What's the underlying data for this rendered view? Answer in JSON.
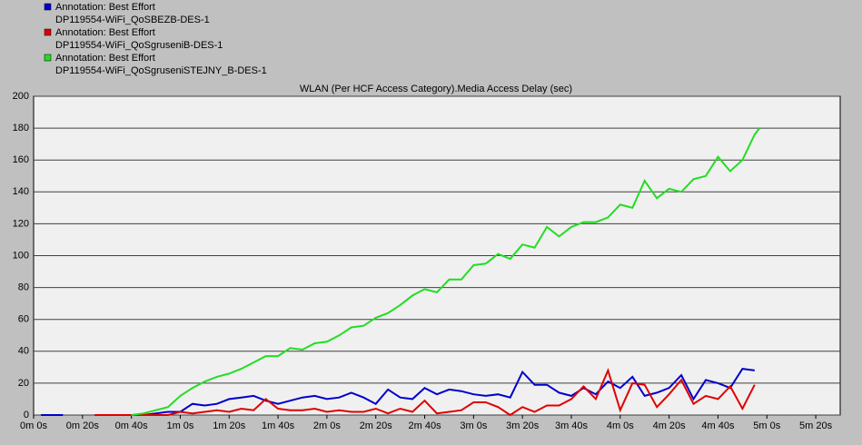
{
  "chart_data": {
    "type": "line",
    "title": "WLAN (Per HCF Access Category).Media Access Delay (sec)",
    "xlim": [
      0,
      330
    ],
    "ylim": [
      0,
      200
    ],
    "xticks": [
      {
        "value": 0,
        "label": "0m 0s"
      },
      {
        "value": 20,
        "label": "0m 20s"
      },
      {
        "value": 40,
        "label": "0m 40s"
      },
      {
        "value": 60,
        "label": "1m 0s"
      },
      {
        "value": 80,
        "label": "1m 20s"
      },
      {
        "value": 100,
        "label": "1m 40s"
      },
      {
        "value": 120,
        "label": "2m 0s"
      },
      {
        "value": 140,
        "label": "2m 20s"
      },
      {
        "value": 160,
        "label": "2m 40s"
      },
      {
        "value": 180,
        "label": "3m 0s"
      },
      {
        "value": 200,
        "label": "3m 20s"
      },
      {
        "value": 220,
        "label": "3m 40s"
      },
      {
        "value": 240,
        "label": "4m 0s"
      },
      {
        "value": 260,
        "label": "4m 20s"
      },
      {
        "value": 280,
        "label": "4m 40s"
      },
      {
        "value": 300,
        "label": "5m 0s"
      },
      {
        "value": 320,
        "label": "5m 20s"
      }
    ],
    "yticks": [
      0,
      20,
      40,
      60,
      80,
      100,
      120,
      140,
      160,
      180,
      200
    ],
    "grid": true,
    "series": [
      {
        "annotation": "Annotation: Best Effort",
        "name": "DP119554-WiFi_QoSBEZB-DES-1",
        "color": "#0000cc",
        "x": [
          3,
          12,
          18,
          25,
          30,
          35,
          40,
          45,
          50,
          55,
          60,
          65,
          70,
          75,
          80,
          85,
          90,
          95,
          100,
          105,
          110,
          115,
          120,
          125,
          130,
          135,
          140,
          145,
          150,
          155,
          160,
          165,
          170,
          175,
          180,
          185,
          190,
          195,
          200,
          205,
          210,
          215,
          220,
          225,
          230,
          235,
          240,
          245,
          250,
          255,
          260,
          265,
          270,
          275,
          280,
          285,
          290,
          295
        ],
        "values": [
          0,
          0,
          null,
          0,
          0,
          0,
          0,
          0,
          1,
          2,
          2,
          7,
          6,
          7,
          10,
          11,
          12,
          9,
          7,
          9,
          11,
          12,
          10,
          11,
          14,
          11,
          7,
          16,
          11,
          10,
          17,
          13,
          16,
          15,
          13,
          12,
          13,
          11,
          27,
          19,
          19,
          14,
          12,
          17,
          13,
          21,
          17,
          24,
          12,
          14,
          17,
          25,
          10,
          22,
          20,
          17,
          29,
          28
        ]
      },
      {
        "annotation": "Annotation: Best Effort",
        "name": "DP119554-WiFi_QoSgruseniB-DES-1",
        "color": "#e00000",
        "x": [
          25,
          30,
          35,
          40,
          45,
          50,
          55,
          60,
          65,
          70,
          75,
          80,
          85,
          90,
          95,
          100,
          105,
          110,
          115,
          120,
          125,
          130,
          135,
          140,
          145,
          150,
          155,
          160,
          165,
          170,
          175,
          180,
          185,
          190,
          195,
          200,
          205,
          210,
          215,
          220,
          225,
          230,
          235,
          240,
          245,
          250,
          255,
          260,
          265,
          270,
          275,
          280,
          285,
          290,
          295
        ],
        "values": [
          0,
          0,
          0,
          0,
          0,
          0,
          0,
          2,
          1,
          2,
          3,
          2,
          4,
          3,
          10,
          4,
          3,
          3,
          4,
          2,
          3,
          2,
          2,
          4,
          1,
          4,
          2,
          9,
          1,
          2,
          3,
          8,
          8,
          5,
          0,
          5,
          2,
          6,
          6,
          10,
          18,
          10,
          28,
          3,
          20,
          19,
          5,
          13,
          22,
          7,
          12,
          10,
          18,
          4,
          19
        ]
      },
      {
        "annotation": "Annotation: Best Effort",
        "name": "DP119554-WiFi_QoSgruseniSTEJNY_B-DES-1",
        "color": "#22dd22",
        "x": [
          40,
          45,
          50,
          55,
          60,
          65,
          70,
          75,
          80,
          85,
          90,
          95,
          100,
          105,
          110,
          115,
          120,
          125,
          130,
          135,
          140,
          145,
          150,
          155,
          160,
          165,
          170,
          175,
          180,
          185,
          190,
          195,
          200,
          205,
          210,
          215,
          220,
          225,
          230,
          235,
          240,
          245,
          250,
          255,
          260,
          265,
          270,
          275,
          280,
          285,
          290,
          295,
          297
        ],
        "values": [
          0,
          1,
          3,
          5,
          12,
          17,
          21,
          24,
          26,
          29,
          33,
          37,
          37,
          42,
          41,
          45,
          46,
          50,
          55,
          56,
          61,
          64,
          69,
          75,
          79,
          77,
          85,
          85,
          94,
          95,
          101,
          98,
          107,
          105,
          118,
          112,
          118,
          121,
          121,
          124,
          132,
          130,
          147,
          136,
          142,
          140,
          148,
          150,
          162,
          153,
          160,
          176,
          180
        ]
      }
    ]
  }
}
